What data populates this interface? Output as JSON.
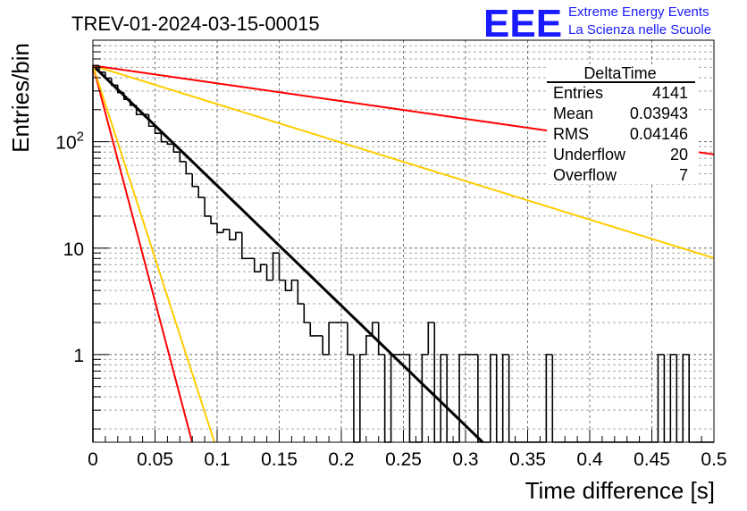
{
  "header": {
    "run_title": "TREV-01-2024-03-15-00015",
    "logo_text": "EEE",
    "brand_line1": "Extreme Energy Events",
    "brand_line2": "La Scienza nelle Scuole"
  },
  "stats_box": {
    "name": "DeltaTime",
    "rows": [
      {
        "label": "Entries",
        "value": "4141"
      },
      {
        "label": "Mean",
        "value": "0.03943"
      },
      {
        "label": "RMS",
        "value": "0.04146"
      },
      {
        "label": "Underflow",
        "value": "20"
      },
      {
        "label": "Overflow",
        "value": "7"
      }
    ]
  },
  "chart_data": {
    "type": "histogram",
    "title": "TREV-01-2024-03-15-00015",
    "xlabel": "Time difference [s]",
    "ylabel": "Entries/bin",
    "xlim": [
      0,
      0.5
    ],
    "ylim": [
      0.15,
      900
    ],
    "y_log_scale": true,
    "grid": true,
    "x_ticks": [
      "0",
      "0.05",
      "0.1",
      "0.15",
      "0.2",
      "0.25",
      "0.3",
      "0.35",
      "0.4",
      "0.45",
      "0.5"
    ],
    "y_ticks": [
      {
        "value": 1,
        "label": "1"
      },
      {
        "value": 10,
        "label": "10"
      },
      {
        "value": 100,
        "label": "10^2"
      }
    ],
    "bin_width": 0.005,
    "histogram": {
      "x": [
        0.0,
        0.005,
        0.01,
        0.015,
        0.02,
        0.025,
        0.03,
        0.035,
        0.04,
        0.045,
        0.05,
        0.055,
        0.06,
        0.065,
        0.07,
        0.075,
        0.08,
        0.085,
        0.09,
        0.095,
        0.1,
        0.105,
        0.11,
        0.115,
        0.12,
        0.125,
        0.13,
        0.135,
        0.14,
        0.145,
        0.15,
        0.155,
        0.16,
        0.165,
        0.17,
        0.175,
        0.18,
        0.185,
        0.19,
        0.195,
        0.2,
        0.205,
        0.21,
        0.215,
        0.22,
        0.225,
        0.23,
        0.235,
        0.24,
        0.245,
        0.25,
        0.255,
        0.26,
        0.265,
        0.27,
        0.275,
        0.28,
        0.285,
        0.29,
        0.295,
        0.3,
        0.305,
        0.31,
        0.315,
        0.32,
        0.325,
        0.33,
        0.335,
        0.34,
        0.345,
        0.35,
        0.355,
        0.36,
        0.365,
        0.37,
        0.375,
        0.38,
        0.385,
        0.39,
        0.395,
        0.4,
        0.405,
        0.41,
        0.415,
        0.42,
        0.425,
        0.43,
        0.435,
        0.44,
        0.445,
        0.45,
        0.455,
        0.46,
        0.465,
        0.47,
        0.475,
        0.48,
        0.485,
        0.49,
        0.495
      ],
      "counts": [
        520,
        450,
        395,
        340,
        290,
        250,
        220,
        180,
        180,
        140,
        120,
        100,
        95,
        80,
        65,
        50,
        38,
        30,
        20,
        17,
        14,
        15,
        12,
        14,
        8,
        8,
        6,
        7,
        5,
        9,
        5,
        4,
        5,
        3,
        2,
        1.5,
        1.5,
        1,
        2,
        2,
        2,
        1,
        0,
        1,
        1.5,
        2,
        1,
        0,
        1,
        1,
        1,
        0,
        0,
        1,
        2,
        0,
        1,
        0,
        0,
        1,
        1,
        1,
        0,
        0,
        1,
        0,
        1,
        0,
        0,
        0,
        0,
        0,
        0,
        1,
        0,
        0,
        0,
        0,
        0,
        0,
        0,
        0,
        0,
        0,
        0,
        0,
        0,
        0,
        0,
        0,
        0,
        1,
        0,
        1,
        0,
        1,
        0,
        0,
        0,
        0
      ]
    },
    "curves": [
      {
        "color": "#000000",
        "y0": 520,
        "tau": 0.0385
      },
      {
        "color": "#ff0000",
        "y0": 520,
        "tau": 0.0098
      },
      {
        "color": "#ffcc00",
        "y0": 520,
        "tau": 0.012
      },
      {
        "color": "#ffcc00",
        "y0": 520,
        "tau": 0.12
      },
      {
        "color": "#ff0000",
        "y0": 520,
        "tau": 0.26
      }
    ]
  }
}
